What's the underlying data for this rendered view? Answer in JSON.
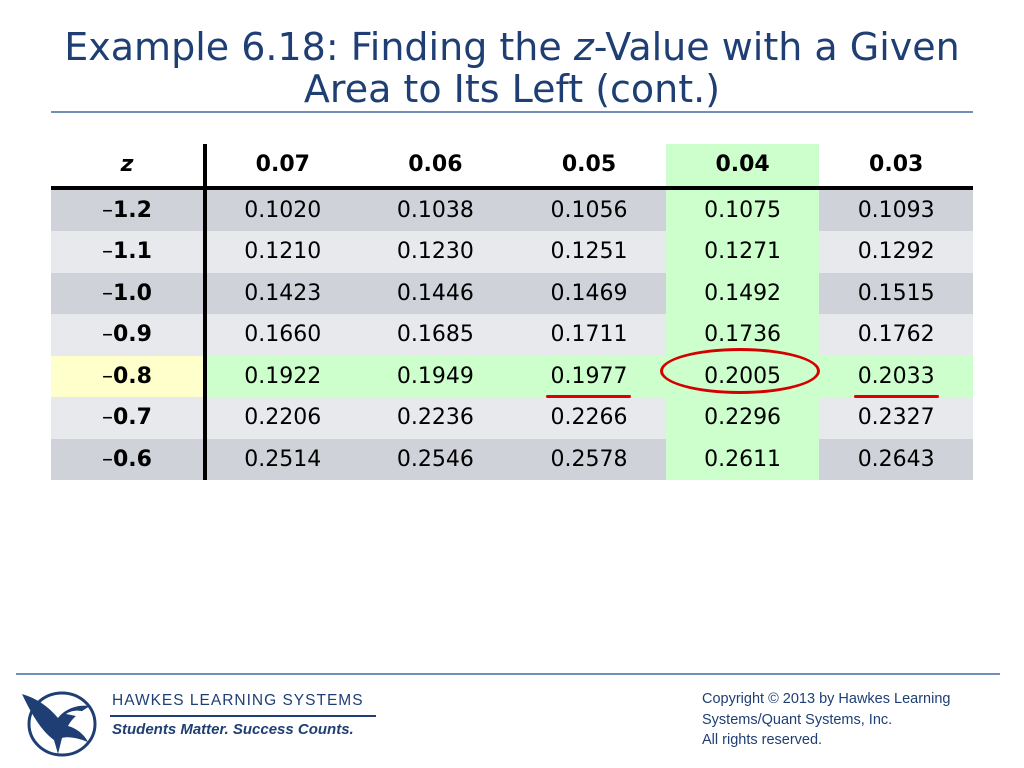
{
  "title": {
    "line1_a": "Example 6.18: Finding the ",
    "line1_italic": "z",
    "line1_b": "-Value with a Given",
    "line2": "Area to Its Left (cont.)"
  },
  "table": {
    "header_z": "z",
    "columns": [
      "0.07",
      "0.06",
      "0.05",
      "0.04",
      "0.03"
    ],
    "minus_sign": "–",
    "rows": [
      {
        "z": "1.2",
        "values": [
          "0.1020",
          "0.1038",
          "0.1056",
          "0.1075",
          "0.1093"
        ]
      },
      {
        "z": "1.1",
        "values": [
          "0.1210",
          "0.1230",
          "0.1251",
          "0.1271",
          "0.1292"
        ]
      },
      {
        "z": "1.0",
        "values": [
          "0.1423",
          "0.1446",
          "0.1469",
          "0.1492",
          "0.1515"
        ]
      },
      {
        "z": "0.9",
        "values": [
          "0.1660",
          "0.1685",
          "0.1711",
          "0.1736",
          "0.1762"
        ]
      },
      {
        "z": "0.8",
        "values": [
          "0.1922",
          "0.1949",
          "0.1977",
          "0.2005",
          "0.2033"
        ]
      },
      {
        "z": "0.7",
        "values": [
          "0.2206",
          "0.2236",
          "0.2266",
          "0.2296",
          "0.2327"
        ]
      },
      {
        "z": "0.6",
        "values": [
          "0.2514",
          "0.2546",
          "0.2578",
          "0.2611",
          "0.2643"
        ]
      }
    ],
    "highlighted_column": "0.04",
    "highlighted_row": "0.8",
    "circled_value": "0.2005",
    "underlined_values": [
      "0.1977",
      "0.2033"
    ]
  },
  "colors": {
    "title": "#1f3f74",
    "highlight_green": "#ccffcc",
    "highlight_yellow": "#ffffcc",
    "annotation_red": "#d40000"
  },
  "footer": {
    "brand": "HAWKES  LEARNING  SYSTEMS",
    "tagline": "Students Matter. Success Counts.",
    "copyright_1": "Copyright © 2013 by Hawkes Learning",
    "copyright_2": "Systems/Quant Systems, Inc.",
    "copyright_3": "All rights reserved.",
    "logo_icon": "eagle-logo-icon"
  }
}
